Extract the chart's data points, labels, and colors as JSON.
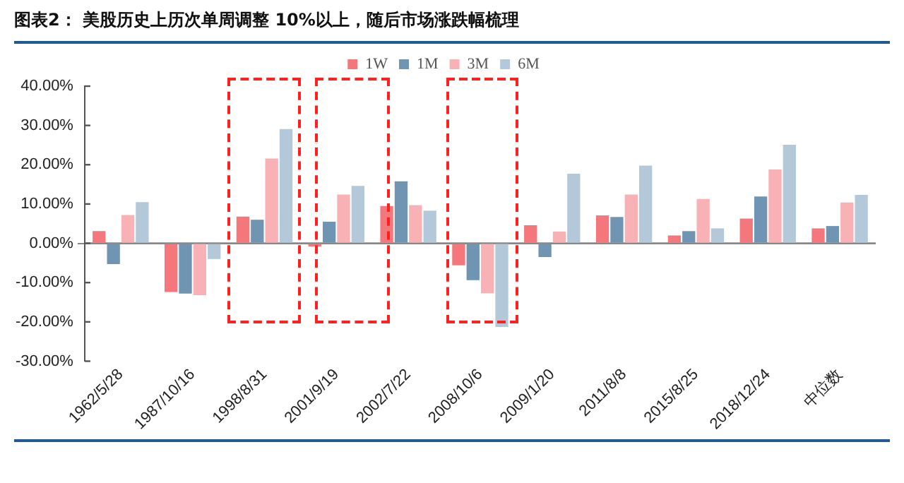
{
  "chart_data": {
    "type": "bar",
    "title": "图表2：  美股历史上历次单周调整 10%以上，随后市场涨跌幅梳理",
    "categories": [
      "1962/5/28",
      "1987/10/16",
      "1998/8/31",
      "2001/9/19",
      "2002/7/22",
      "2008/10/6",
      "2009/1/20",
      "2011/8/8",
      "2015/8/25",
      "2018/12/24",
      "中位数"
    ],
    "series": [
      {
        "name": "1W",
        "color": "#f4777b",
        "values": [
          3.1,
          -12.4,
          6.8,
          -0.8,
          9.5,
          -5.6,
          4.6,
          7.1,
          2.0,
          6.3,
          3.8
        ]
      },
      {
        "name": "1M",
        "color": "#6f95b3",
        "values": [
          -5.3,
          -12.8,
          6.0,
          5.5,
          15.8,
          -9.4,
          -3.5,
          6.7,
          3.1,
          11.9,
          4.4
        ]
      },
      {
        "name": "3M",
        "color": "#f8b2b6",
        "values": [
          7.2,
          -13.2,
          21.6,
          12.4,
          9.7,
          -12.7,
          3.0,
          12.4,
          11.3,
          18.8,
          10.4
        ]
      },
      {
        "name": "6M",
        "color": "#b3c9da",
        "values": [
          10.5,
          -4.0,
          29.1,
          14.6,
          8.3,
          -21.3,
          17.7,
          19.8,
          3.8,
          25.1,
          12.3
        ]
      }
    ],
    "ylim": [
      -30,
      40
    ],
    "yticks": [
      {
        "value": -30,
        "label": "-30.00%"
      },
      {
        "value": -20,
        "label": "-20.00%"
      },
      {
        "value": -10,
        "label": "-10.00%"
      },
      {
        "value": 0,
        "label": "0.00%"
      },
      {
        "value": 10,
        "label": "10.00%"
      },
      {
        "value": 20,
        "label": "20.00%"
      },
      {
        "value": 30,
        "label": "30.00%"
      },
      {
        "value": 40,
        "label": "40.00%"
      }
    ],
    "legend": "top"
  }
}
